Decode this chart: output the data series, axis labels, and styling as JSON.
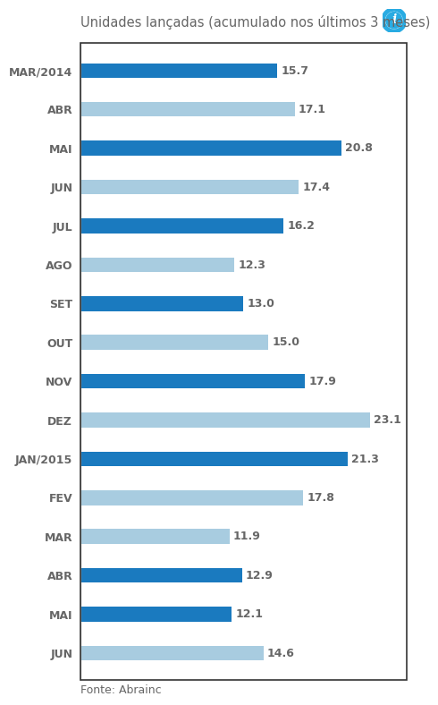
{
  "title": "Unidades lançadas (acumulado nos últimos 3 meses)",
  "categories": [
    "MAR/2014",
    "ABR",
    "MAI",
    "JUN",
    "JUL",
    "AGO",
    "SET",
    "OUT",
    "NOV",
    "DEZ",
    "JAN/2015",
    "FEV",
    "MAR",
    "ABR",
    "MAI",
    "JUN"
  ],
  "values": [
    15.7,
    17.1,
    20.8,
    17.4,
    16.2,
    12.3,
    13.0,
    15.0,
    17.9,
    23.1,
    21.3,
    17.8,
    11.9,
    12.9,
    12.1,
    14.6
  ],
  "colors": [
    "#1a7abf",
    "#a8cce0",
    "#1a7abf",
    "#a8cce0",
    "#1a7abf",
    "#a8cce0",
    "#1a7abf",
    "#a8cce0",
    "#1a7abf",
    "#a8cce0",
    "#1a7abf",
    "#a8cce0",
    "#a8cce0",
    "#1a7abf",
    "#1a7abf",
    "#a8cce0"
  ],
  "footer": "Fonte: Abrainc",
  "bg_color": "#ffffff",
  "bar_area_color": "#ffffff",
  "xlim": [
    0,
    26
  ],
  "label_color": "#666666",
  "value_color": "#666666",
  "title_color": "#666666",
  "footer_color": "#666666",
  "title_fontsize": 10.5,
  "label_fontsize": 9,
  "value_fontsize": 9,
  "footer_fontsize": 9,
  "bar_height": 0.38,
  "icon_color": "#29abe2",
  "border_color": "#333333",
  "divider_color": "#bbbbbb"
}
